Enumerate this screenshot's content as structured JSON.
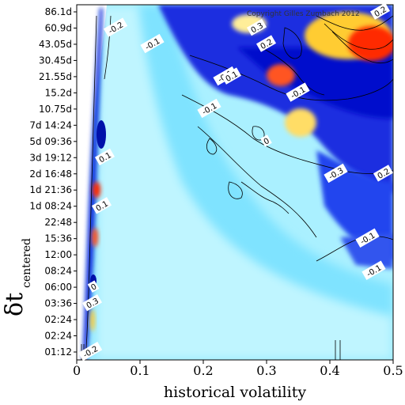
{
  "chart_data": {
    "type": "heatmap",
    "title": "",
    "xlabel": "historical volatility",
    "ylabel_main": "δt",
    "ylabel_sub": "centered",
    "copyright": "Copyright Gilles Zumbach 2012",
    "xlim": [
      0,
      0.5
    ],
    "x_ticks": [
      "0",
      "0.1",
      "0.2",
      "0.3",
      "0.4",
      "0.5"
    ],
    "y_ticks": [
      "86.1d",
      "60.9d",
      "43.05d",
      "30.45d",
      "21.55d",
      "15.2d",
      "10.75d",
      "7d 14:24",
      "5d 09:36",
      "3d 19:12",
      "2d 16:48",
      "1d 21:36",
      "1d 08:24",
      "22:48",
      "15:36",
      "12:00",
      "08:24",
      "06:00",
      "03:36",
      "02:24",
      "02:24",
      "01:12"
    ],
    "colorscale": [
      "#0000cc",
      "#3355ee",
      "#66ccff",
      "#aaf0ff",
      "#ffffcc",
      "#ffcc33",
      "#ff3300"
    ],
    "contour_labels": [
      {
        "text": "0.2",
        "value": 0.2,
        "x": 0.48,
        "y_tick": "86.1d"
      },
      {
        "text": "0.3",
        "value": 0.3,
        "x": 0.285,
        "y_tick": "60.9d"
      },
      {
        "text": "0.2",
        "value": 0.2,
        "x": 0.3,
        "y_tick": "43.05d"
      },
      {
        "text": "-0.1",
        "value": -0.1,
        "x": 0.12,
        "y_tick": "43.05d"
      },
      {
        "text": "-0.2",
        "value": -0.2,
        "x": 0.062,
        "y_tick": "60.9d"
      },
      {
        "text": "-0.1",
        "value": -0.1,
        "x": 0.235,
        "y_tick": "21.55d"
      },
      {
        "text": "0.1",
        "value": 0.1,
        "x": 0.245,
        "y_tick": "21.55d"
      },
      {
        "text": "-0.1",
        "value": -0.1,
        "x": 0.35,
        "y_tick": "15.2d"
      },
      {
        "text": "-0.1",
        "value": -0.1,
        "x": 0.21,
        "y_tick": "10.75d"
      },
      {
        "text": "0",
        "value": 0,
        "x": 0.3,
        "y_tick": "5d 09:36"
      },
      {
        "text": "0.1",
        "value": 0.1,
        "x": 0.045,
        "y_tick": "3d 19:12"
      },
      {
        "text": "-0.3",
        "value": -0.3,
        "x": 0.41,
        "y_tick": "2d 16:48"
      },
      {
        "text": "0.2",
        "value": 0.2,
        "x": 0.49,
        "y_tick": "2d 16:48"
      },
      {
        "text": "0.1",
        "value": 0.1,
        "x": 0.04,
        "y_tick": "1d 08:24"
      },
      {
        "text": "-0.1",
        "value": -0.1,
        "x": 0.46,
        "y_tick": "15:36"
      },
      {
        "text": "-0.1",
        "value": -0.1,
        "x": 0.47,
        "y_tick": "08:24"
      },
      {
        "text": "0",
        "value": 0,
        "x": 0.027,
        "y_tick": "06:00"
      },
      {
        "text": "0.3",
        "value": 0.3,
        "x": 0.025,
        "y_tick": "03:36"
      },
      {
        "text": "-0.2",
        "value": -0.2,
        "x": 0.022,
        "y_tick": "01:12"
      }
    ],
    "grid": false,
    "legend": "none"
  }
}
